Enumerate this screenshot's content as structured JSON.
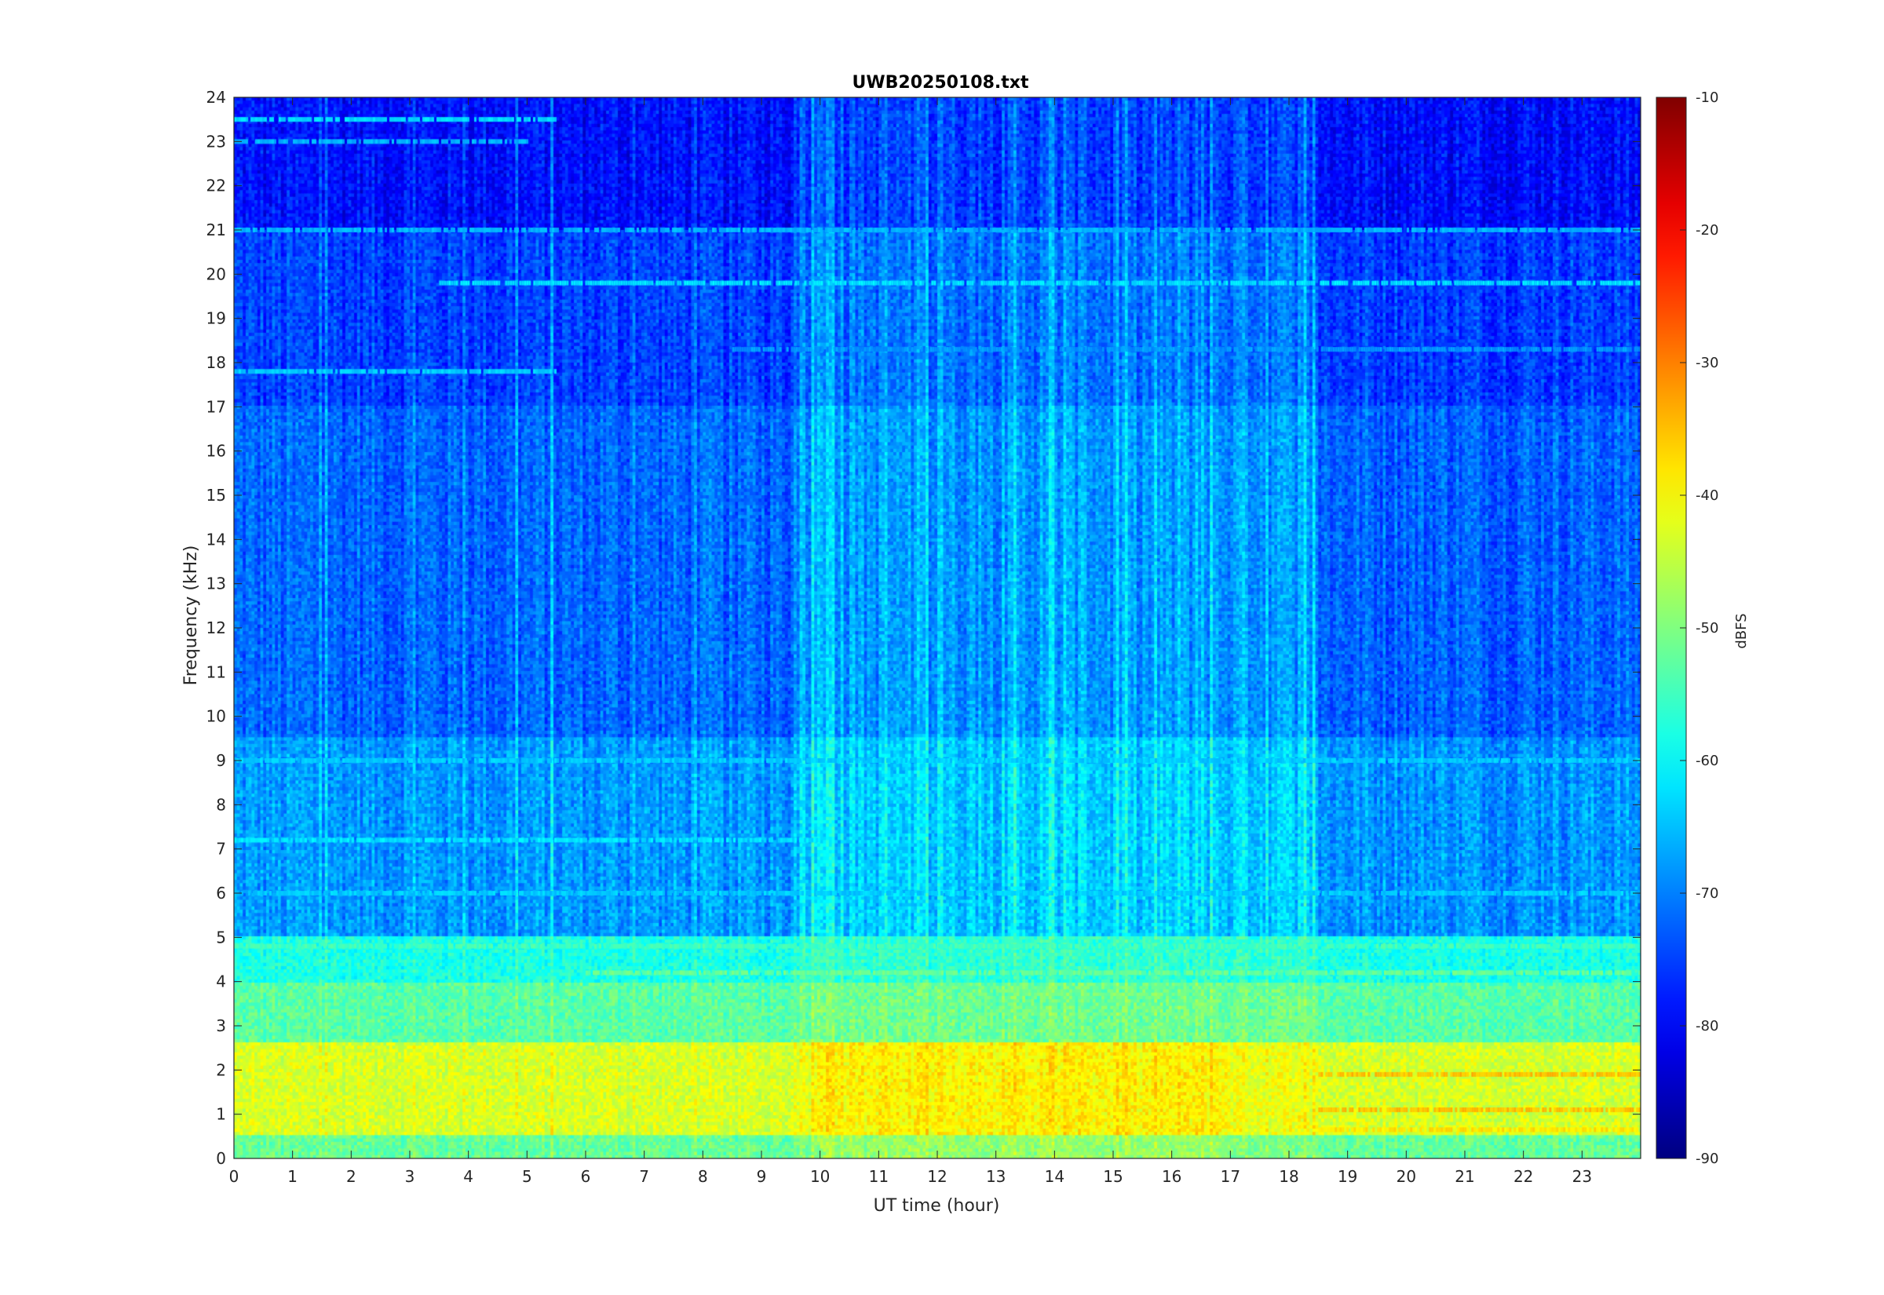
{
  "chart_data": {
    "type": "heatmap",
    "title": "UWB20250108.txt",
    "xlabel": "UT time (hour)",
    "ylabel": "Frequency (kHz)",
    "xlim": [
      0,
      24
    ],
    "ylim": [
      0,
      24
    ],
    "x_ticks": [
      0,
      1,
      2,
      3,
      4,
      5,
      6,
      7,
      8,
      9,
      10,
      11,
      12,
      13,
      14,
      15,
      16,
      17,
      18,
      19,
      20,
      21,
      22,
      23
    ],
    "y_ticks": [
      0,
      1,
      2,
      3,
      4,
      5,
      6,
      7,
      8,
      9,
      10,
      11,
      12,
      13,
      14,
      15,
      16,
      17,
      18,
      19,
      20,
      21,
      22,
      23,
      24
    ],
    "colorbar": {
      "label": "dBFS",
      "range": [
        -90,
        -10
      ],
      "ticks": [
        -10,
        -20,
        -30,
        -40,
        -50,
        -60,
        -70,
        -80,
        -90
      ],
      "colormap": "jet"
    },
    "level_profile": {
      "description_units": "dBFS by frequency band (kHz)",
      "bands": [
        {
          "from": 0,
          "to": 0.5,
          "level": -52
        },
        {
          "from": 0.5,
          "to": 2.6,
          "level": -43
        },
        {
          "from": 2.6,
          "to": 4.0,
          "level": -53
        },
        {
          "from": 4.0,
          "to": 5.0,
          "level": -58
        },
        {
          "from": 5.0,
          "to": 9.5,
          "level": -68
        },
        {
          "from": 9.5,
          "to": 17.0,
          "level": -72
        },
        {
          "from": 17.0,
          "to": 21.0,
          "level": -75
        },
        {
          "from": 21.0,
          "to": 24.0,
          "level": -79
        }
      ]
    },
    "tonal_lines": [
      {
        "freq": 19.8,
        "from": 3.5,
        "to": 24,
        "level": -62
      },
      {
        "freq": 21.0,
        "from": 0,
        "to": 24,
        "level": -66
      },
      {
        "freq": 18.3,
        "from": 8.5,
        "to": 24,
        "level": -68
      },
      {
        "freq": 17.8,
        "from": 0,
        "to": 5.5,
        "level": -64
      },
      {
        "freq": 23.5,
        "from": 0,
        "to": 5.5,
        "level": -63
      },
      {
        "freq": 23.0,
        "from": 0,
        "to": 5,
        "level": -66
      },
      {
        "freq": 4.8,
        "from": 0,
        "to": 24,
        "level": -55
      },
      {
        "freq": 4.2,
        "from": 6,
        "to": 24,
        "level": -52
      },
      {
        "freq": 7.2,
        "from": 0,
        "to": 10,
        "level": -62
      },
      {
        "freq": 6.0,
        "from": 0,
        "to": 24,
        "level": -64
      },
      {
        "freq": 9.0,
        "from": 0,
        "to": 24,
        "level": -64
      },
      {
        "freq": 1.9,
        "from": 18.5,
        "to": 24,
        "level": -35
      },
      {
        "freq": 1.1,
        "from": 18.5,
        "to": 24,
        "level": -35
      },
      {
        "freq": 0.65,
        "from": 18.5,
        "to": 24,
        "level": -38
      }
    ]
  }
}
